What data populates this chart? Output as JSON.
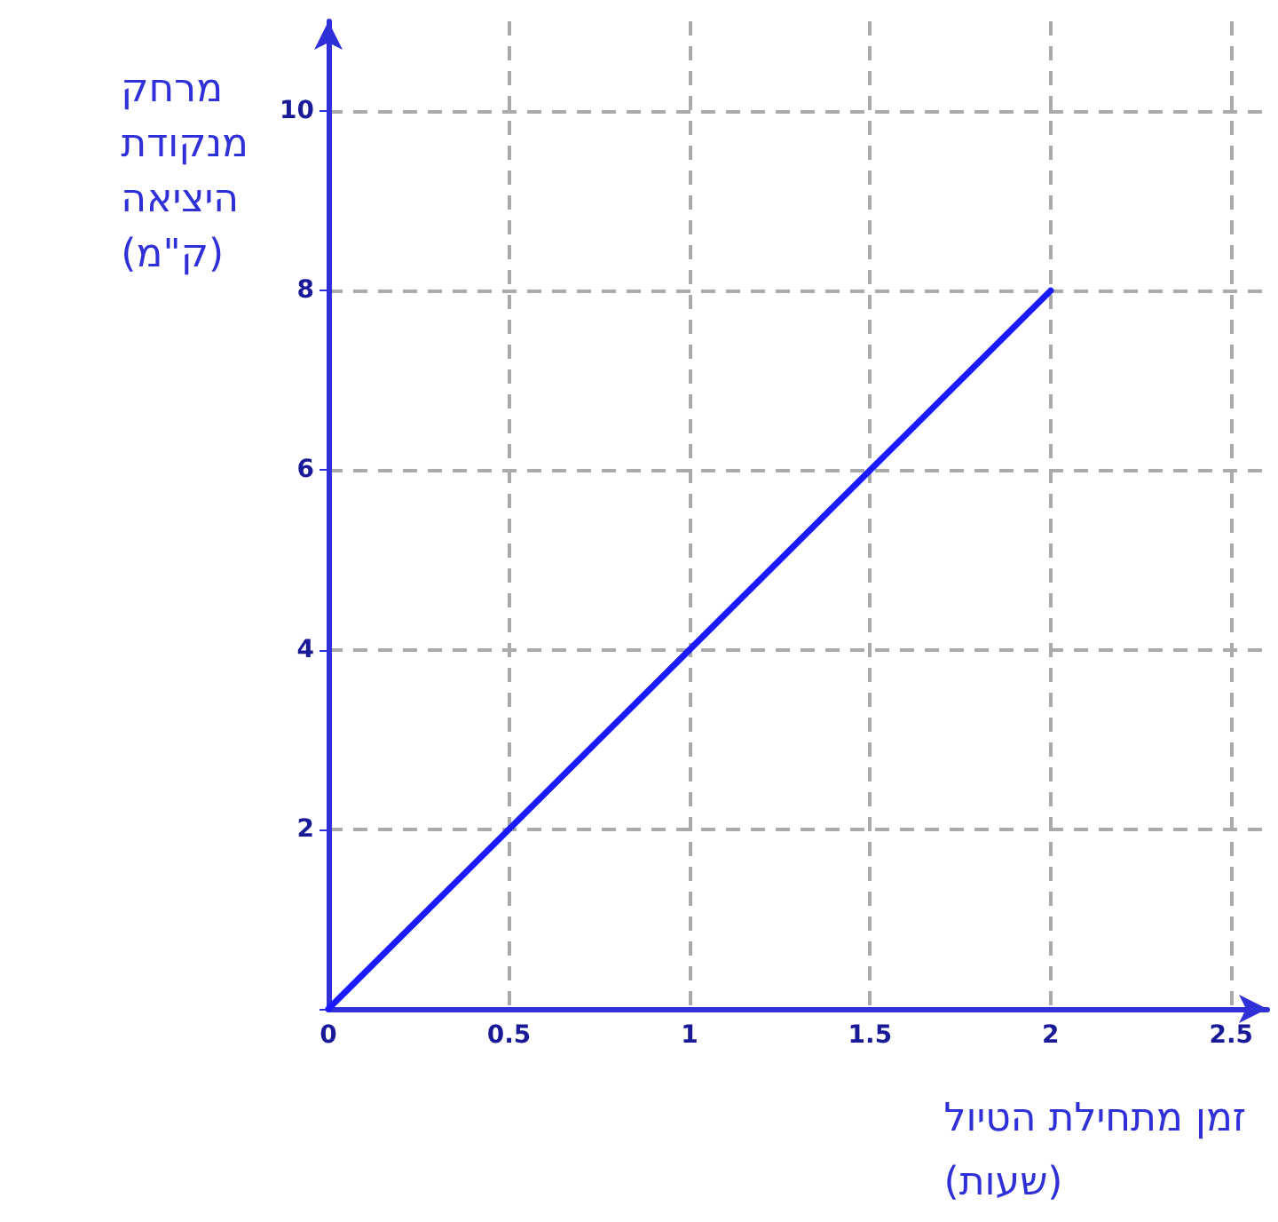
{
  "chart_data": {
    "type": "line",
    "xlabel": "זמן מתחילת הטיול (שעות)",
    "ylabel": "מרחק מנקודת היציאה (ק\"מ)",
    "x": [
      0,
      2
    ],
    "series": [
      {
        "color": "#1a1aff",
        "values": [
          0,
          8
        ]
      }
    ],
    "xlim": [
      0,
      2.6
    ],
    "xticks": [
      0,
      0.5,
      1,
      1.5,
      2,
      2.5
    ],
    "ylim": [
      0,
      11
    ],
    "yticks": [
      {
        "value": 0,
        "label": null
      },
      2,
      4,
      6,
      8,
      10
    ],
    "grid": true,
    "marker": "none",
    "line_style": "solid"
  }
}
